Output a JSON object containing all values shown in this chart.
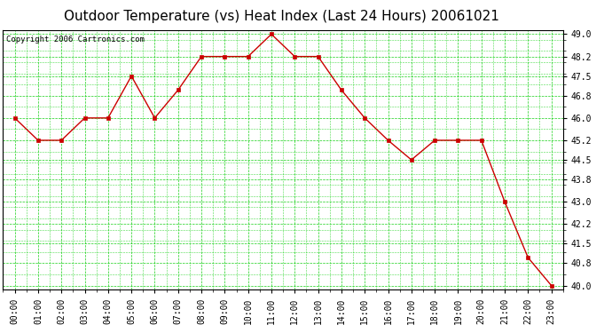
{
  "title": "Outdoor Temperature (vs) Heat Index (Last 24 Hours) 20061021",
  "copyright": "Copyright 2006 Cartronics.com",
  "x_labels": [
    "00:00",
    "01:00",
    "02:00",
    "03:00",
    "04:00",
    "05:00",
    "06:00",
    "07:00",
    "08:00",
    "09:00",
    "10:00",
    "11:00",
    "12:00",
    "13:00",
    "14:00",
    "15:00",
    "16:00",
    "17:00",
    "18:00",
    "19:00",
    "20:00",
    "21:00",
    "22:00",
    "23:00"
  ],
  "y_values": [
    46.0,
    45.2,
    45.2,
    46.0,
    46.0,
    47.5,
    46.0,
    47.0,
    48.2,
    48.2,
    48.2,
    49.0,
    48.2,
    48.2,
    47.0,
    46.0,
    45.2,
    44.5,
    45.2,
    45.2,
    45.2,
    43.0,
    41.0,
    40.0
  ],
  "line_color": "#cc0000",
  "marker_color": "#cc0000",
  "bg_color": "#ffffff",
  "plot_bg_color": "#ffffff",
  "grid_color": "#00cc00",
  "y_min": 40.0,
  "y_max": 49.0,
  "y_ticks": [
    40.0,
    40.8,
    41.5,
    42.2,
    43.0,
    43.8,
    44.5,
    45.2,
    46.0,
    46.8,
    47.5,
    48.2,
    49.0
  ],
  "title_fontsize": 11,
  "tick_fontsize": 7,
  "copyright_fontsize": 6.5
}
